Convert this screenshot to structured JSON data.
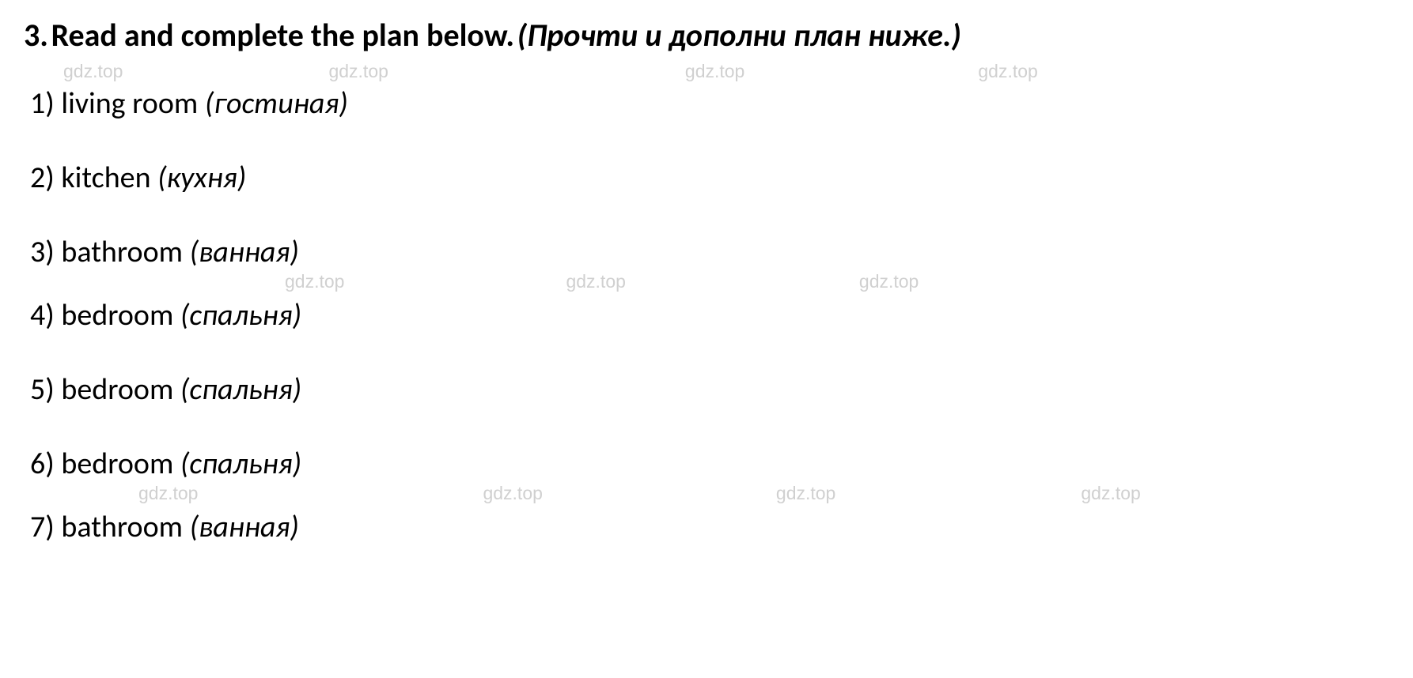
{
  "heading": {
    "number": "3.",
    "english": "Read and complete the plan below.",
    "translation": "(Прочти и дополни план ниже.)"
  },
  "watermark_text": "gdz.top",
  "items": [
    {
      "num": "1)",
      "english": "living room",
      "translation": "(гостиная)"
    },
    {
      "num": "2)",
      "english": "kitchen",
      "translation": "(кухня)"
    },
    {
      "num": "3)",
      "english": "bathroom",
      "translation": "(ванная)"
    },
    {
      "num": "4)",
      "english": "bedroom",
      "translation": "(спальня)"
    },
    {
      "num": "5)",
      "english": "bedroom",
      "translation": "(спальня)"
    },
    {
      "num": "6)",
      "english": "bedroom",
      "translation": "(спальня)"
    },
    {
      "num": "7)",
      "english": "bathroom",
      "translation": "(ванная)"
    }
  ],
  "styling": {
    "background_color": "#ffffff",
    "text_color": "#000000",
    "watermark_color": "#d0d0d0",
    "heading_fontsize": 40,
    "list_fontsize": 38,
    "watermark_fontsize": 23,
    "font_family": "Calibri, Arial, sans-serif"
  }
}
